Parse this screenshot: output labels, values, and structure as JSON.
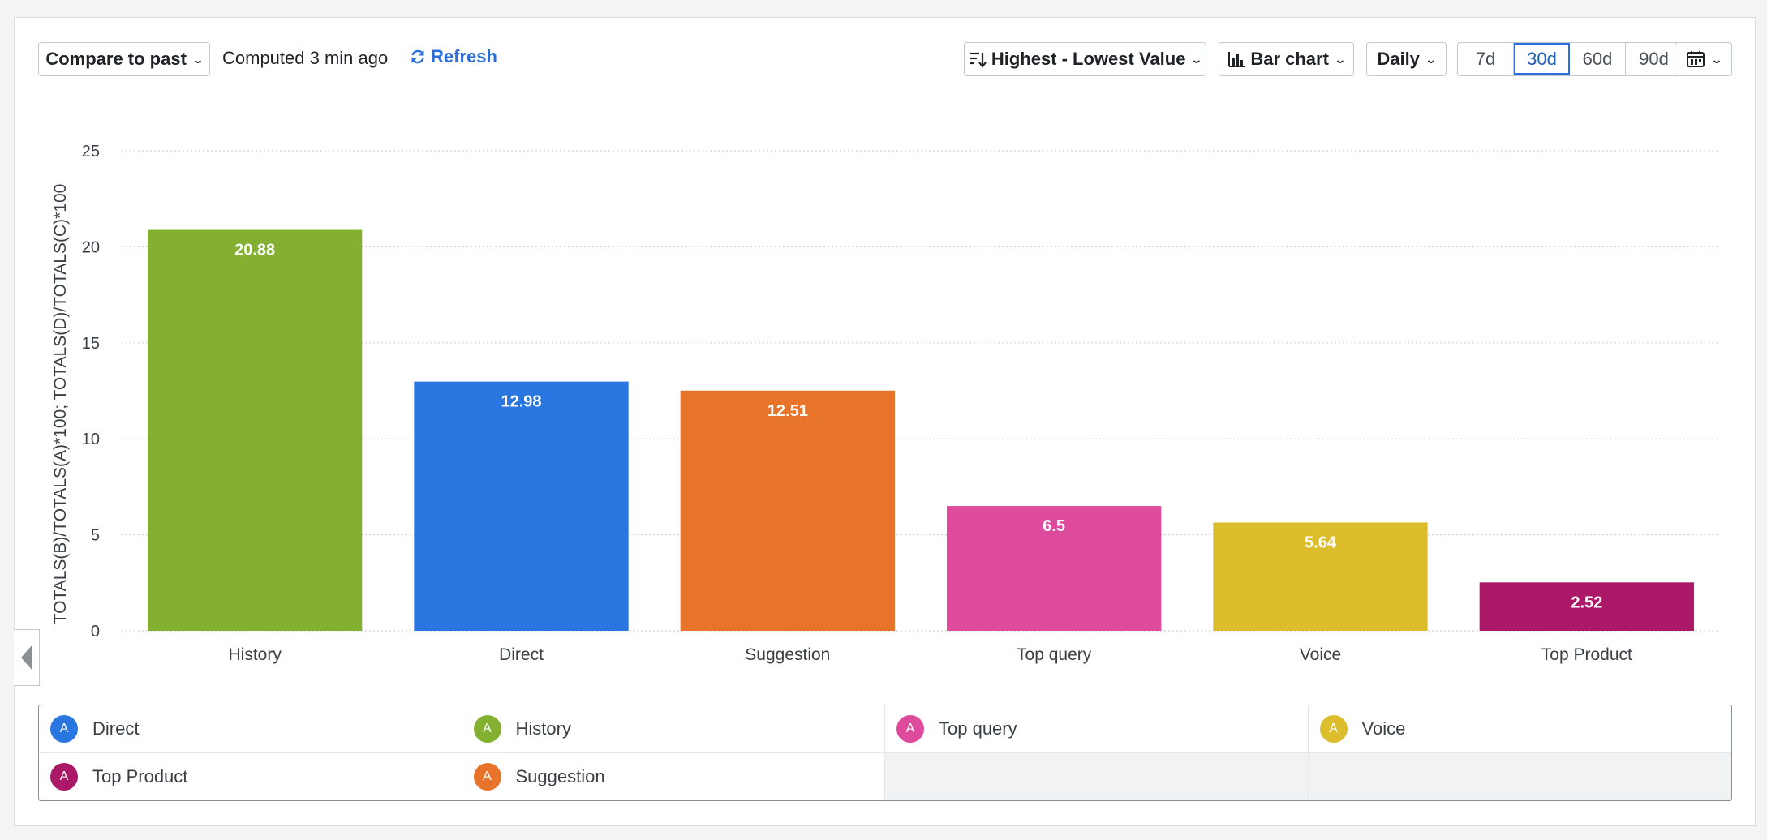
{
  "toolbar": {
    "compare_label": "Compare to past",
    "computed_status": "Computed 3 min ago",
    "refresh_label": "Refresh",
    "sort_label": "Highest - Lowest Value",
    "chart_type_label": "Bar chart",
    "interval_label": "Daily",
    "ranges": [
      "7d",
      "30d",
      "60d",
      "90d"
    ],
    "active_range": "30d"
  },
  "legend": {
    "items": [
      {
        "letter": "A",
        "label": "Direct",
        "color": "#2a76e0"
      },
      {
        "letter": "A",
        "label": "History",
        "color": "#84b032"
      },
      {
        "letter": "A",
        "label": "Top query",
        "color": "#de4a9c"
      },
      {
        "letter": "A",
        "label": "Voice",
        "color": "#dcbd2c"
      },
      {
        "letter": "A",
        "label": "Top Product",
        "color": "#ab1868"
      },
      {
        "letter": "A",
        "label": "Suggestion",
        "color": "#e8732a"
      }
    ]
  },
  "chart_data": {
    "type": "bar",
    "categories": [
      "History",
      "Direct",
      "Suggestion",
      "Top query",
      "Voice",
      "Top Product"
    ],
    "values": [
      20.88,
      12.98,
      12.51,
      6.5,
      5.64,
      2.52
    ],
    "data_labels": [
      "20.88",
      "12.98",
      "12.51",
      "6.5",
      "5.64",
      "2.52"
    ],
    "colors": [
      "#84b032",
      "#2a76e0",
      "#e8732a",
      "#de4a9c",
      "#dcbd2c",
      "#ab1868"
    ],
    "ylabel": "TOTALS(B)/TOTALS(A)*100; TOTALS(D)/TOTALS(C)*100",
    "xlabel": "",
    "ylim": [
      0,
      25
    ],
    "yticks": [
      0,
      5,
      10,
      15,
      20,
      25
    ],
    "grid": true
  }
}
